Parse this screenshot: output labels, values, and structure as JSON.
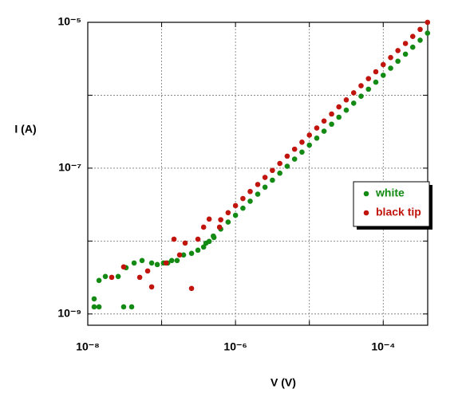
{
  "chart_data": {
    "type": "scatter",
    "x_label": "V (V)",
    "y_label": "I (A)",
    "log_x": true,
    "log_y": true,
    "grid": true,
    "legend": "right",
    "xlim": [
      1e-08,
      0.0004
    ],
    "ylim": [
      7e-10,
      1e-05
    ],
    "xticks": [
      {
        "value": 1e-08,
        "label": "10⁻⁸"
      },
      {
        "value": 1e-06,
        "label": "10⁻⁶"
      },
      {
        "value": 0.0001,
        "label": "10⁻⁴"
      }
    ],
    "x_minor_ticks": [
      1e-07,
      1e-05
    ],
    "yticks": [
      {
        "value": 1e-09,
        "label": "10⁻⁹"
      },
      {
        "value": 1e-07,
        "label": "10⁻⁷"
      },
      {
        "value": 1e-05,
        "label": "10⁻⁵"
      }
    ],
    "y_minor_ticks": [
      1e-08,
      1e-06
    ],
    "series": [
      {
        "name": "white",
        "color": "#138a13",
        "x": [
          1.22e-08,
          1.42e-08,
          1.22e-08,
          1.42e-08,
          1.73e-08,
          2.58e-08,
          3.06e-08,
          3.93e-08,
          3.3e-08,
          4.24e-08,
          5.43e-08,
          7.33e-08,
          8.73e-08,
          1.06e-07,
          1.21e-07,
          1.37e-07,
          1.62e-07,
          1.98e-07,
          2.54e-07,
          3.1e-07,
          3.7e-07,
          4.4e-07,
          5.11e-07,
          3.98e-07,
          5.01e-07,
          6.31e-07,
          7.94e-07,
          1e-06,
          1.26e-06,
          1.58e-06,
          2e-06,
          2.51e-06,
          3.16e-06,
          3.98e-06,
          5.01e-06,
          6.31e-06,
          7.94e-06,
          1e-05,
          1.26e-05,
          1.58e-05,
          2e-05,
          2.51e-05,
          3.16e-05,
          3.98e-05,
          5.01e-05,
          6.31e-05,
          7.94e-05,
          0.0001,
          0.000126,
          0.000158,
          0.0002,
          0.000251,
          0.000316,
          0.000398
        ],
        "values": [
          1.61e-09,
          1.25e-09,
          1.25e-09,
          2.88e-09,
          3.27e-09,
          3.27e-09,
          1.25e-09,
          1.25e-09,
          4.31e-09,
          5e-09,
          5.4e-09,
          5e-09,
          4.76e-09,
          5e-09,
          5e-09,
          5.4e-09,
          5.4e-09,
          6.44e-09,
          6.78e-09,
          7.49e-09,
          8.28e-09,
          9.88e-09,
          1.12e-08,
          9.35e-09,
          1.17e-08,
          1.46e-08,
          1.82e-08,
          2.26e-08,
          2.82e-08,
          3.52e-08,
          4.4e-08,
          5.48e-08,
          6.84e-08,
          8.53e-08,
          1.06e-07,
          1.33e-07,
          1.66e-07,
          2.07e-07,
          2.58e-07,
          3.21e-07,
          4.01e-07,
          5e-07,
          6.24e-07,
          7.78e-07,
          9.7e-07,
          1.21e-06,
          1.51e-06,
          1.88e-06,
          2.35e-06,
          2.93e-06,
          3.66e-06,
          4.56e-06,
          5.69e-06,
          7.1e-06
        ]
      },
      {
        "name": "black tip",
        "color": "#c0140c",
        "x": [
          2.11e-08,
          3.06e-08,
          5.05e-08,
          6.47e-08,
          7.33e-08,
          1.15e-07,
          1.47e-07,
          1.75e-07,
          2.08e-07,
          2.54e-07,
          3.1e-07,
          3.7e-07,
          4.4e-07,
          6.08e-07,
          6.31e-07,
          7.94e-07,
          1e-06,
          1.26e-06,
          1.58e-06,
          2e-06,
          2.51e-06,
          3.16e-06,
          3.98e-06,
          5.01e-06,
          6.31e-06,
          7.94e-06,
          1e-05,
          1.26e-05,
          1.58e-05,
          2e-05,
          2.51e-05,
          3.16e-05,
          3.98e-05,
          5.01e-05,
          6.31e-05,
          7.94e-05,
          0.0001,
          0.000126,
          0.000158,
          0.0002,
          0.000251,
          0.000316,
          0.000398
        ],
        "values": [
          3.18e-09,
          4.42e-09,
          3.18e-09,
          3.89e-09,
          2.35e-09,
          5e-09,
          1.06e-08,
          6.44e-09,
          9.39e-09,
          2.24e-09,
          1.06e-08,
          1.55e-08,
          2e-08,
          1.55e-08,
          1.96e-08,
          2.45e-08,
          3.06e-08,
          3.83e-08,
          4.78e-08,
          5.97e-08,
          7.46e-08,
          9.31e-08,
          1.16e-07,
          1.46e-07,
          1.82e-07,
          2.27e-07,
          2.84e-07,
          3.55e-07,
          4.43e-07,
          5.53e-07,
          6.92e-07,
          8.63e-07,
          1.08e-06,
          1.35e-06,
          1.69e-06,
          2.1e-06,
          2.63e-06,
          3.29e-06,
          4.1e-06,
          5.13e-06,
          6.41e-06,
          8e-06,
          1e-05
        ]
      }
    ]
  }
}
